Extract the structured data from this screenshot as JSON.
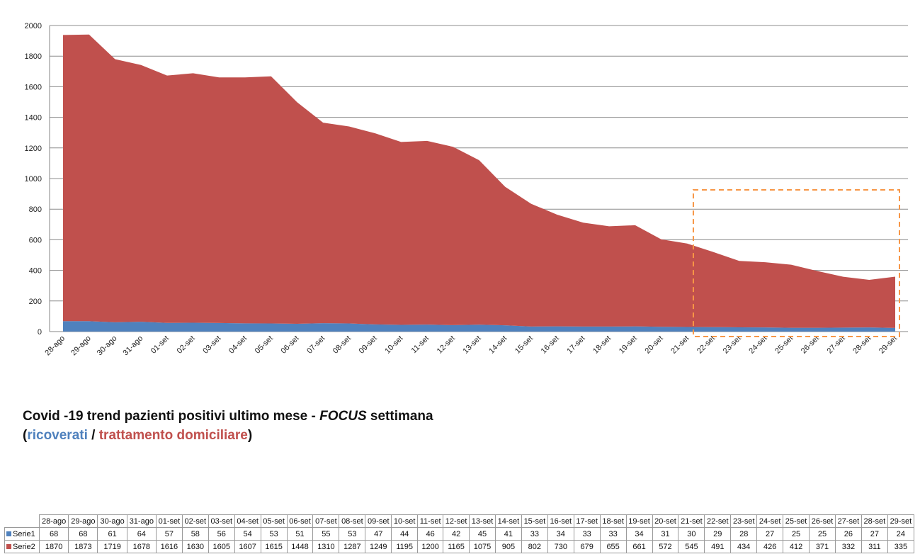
{
  "chart_data": {
    "type": "area",
    "stacked": true,
    "categories": [
      "28-ago",
      "29-ago",
      "30-ago",
      "31-ago",
      "01-set",
      "02-set",
      "03-set",
      "04-set",
      "05-set",
      "06-set",
      "07-set",
      "08-set",
      "09-set",
      "10-set",
      "11-set",
      "12-set",
      "13-set",
      "14-set",
      "15-set",
      "16-set",
      "17-set",
      "18-set",
      "19-set",
      "20-set",
      "21-set",
      "22-set",
      "23-set",
      "24-set",
      "25-set",
      "26-set",
      "27-set",
      "28-set",
      "29-set"
    ],
    "series": [
      {
        "name": "Serie1",
        "color": "#4f81bd",
        "values": [
          68,
          68,
          61,
          64,
          57,
          58,
          56,
          54,
          53,
          51,
          55,
          53,
          47,
          44,
          46,
          42,
          45,
          41,
          33,
          34,
          33,
          33,
          34,
          31,
          30,
          29,
          28,
          27,
          25,
          25,
          26,
          27,
          24
        ]
      },
      {
        "name": "Serie2",
        "color": "#c0504d",
        "values": [
          1870,
          1873,
          1719,
          1678,
          1616,
          1630,
          1605,
          1607,
          1615,
          1448,
          1310,
          1287,
          1249,
          1195,
          1200,
          1165,
          1075,
          905,
          802,
          730,
          679,
          655,
          661,
          572,
          545,
          491,
          434,
          426,
          412,
          371,
          332,
          311,
          335
        ]
      }
    ],
    "ylim": [
      0,
      2000
    ],
    "yticks": [
      0,
      200,
      400,
      600,
      800,
      1000,
      1200,
      1400,
      1600,
      1800,
      2000
    ],
    "grid": true,
    "highlight_box": {
      "from_category": "22-set",
      "to_category": "29-set",
      "color": "#f79646",
      "style": "dashed"
    },
    "title": {
      "line1_prefix": "Covid -19 trend pazienti positivi ultimo mese - ",
      "line1_focus": "FOCUS",
      "line1_suffix": " settimana",
      "line2_open": "(",
      "line2_blue": "ricoverati",
      "line2_sep": " / ",
      "line2_red": "trattamento domiciliare",
      "line2_close": ")"
    }
  }
}
